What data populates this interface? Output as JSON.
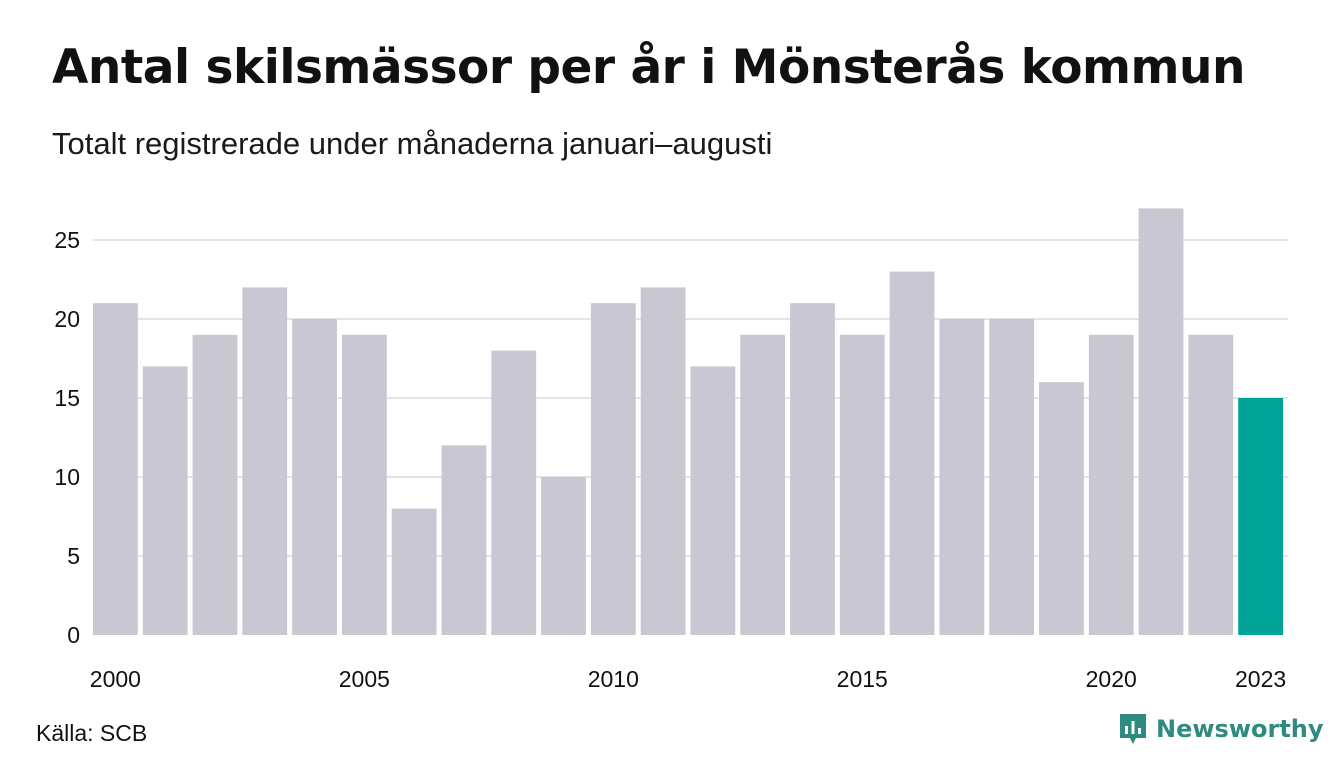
{
  "title": "Antal skilsmässor per år i Mönsterås kommun",
  "subtitle": "Totalt registrerade under månaderna januari–augusti",
  "source": "Källa: SCB",
  "brand": {
    "name": "Newsworthy",
    "icon": "newsworthy-logo-icon",
    "color": "#2f8a7f"
  },
  "colors": {
    "bar": "#c8c7d2",
    "highlight": "#00a398",
    "grid": "#e3e3e8"
  },
  "chart_data": {
    "type": "bar",
    "categories": [
      "2000",
      "2001",
      "2002",
      "2003",
      "2004",
      "2005",
      "2006",
      "2007",
      "2008",
      "2009",
      "2010",
      "2011",
      "2012",
      "2013",
      "2014",
      "2015",
      "2016",
      "2017",
      "2018",
      "2019",
      "2020",
      "2021",
      "2022",
      "2023"
    ],
    "values": [
      21,
      17,
      19,
      22,
      20,
      19,
      8,
      12,
      18,
      10,
      21,
      22,
      17,
      19,
      21,
      19,
      23,
      20,
      20,
      16,
      19,
      27,
      19,
      15
    ],
    "highlight": "2023",
    "x_tick_labels": [
      "2000",
      "2005",
      "2010",
      "2015",
      "2020",
      "2023"
    ],
    "y_ticks": [
      0,
      5,
      10,
      15,
      20,
      25
    ],
    "ylim": [
      0,
      27
    ],
    "grid": true
  }
}
